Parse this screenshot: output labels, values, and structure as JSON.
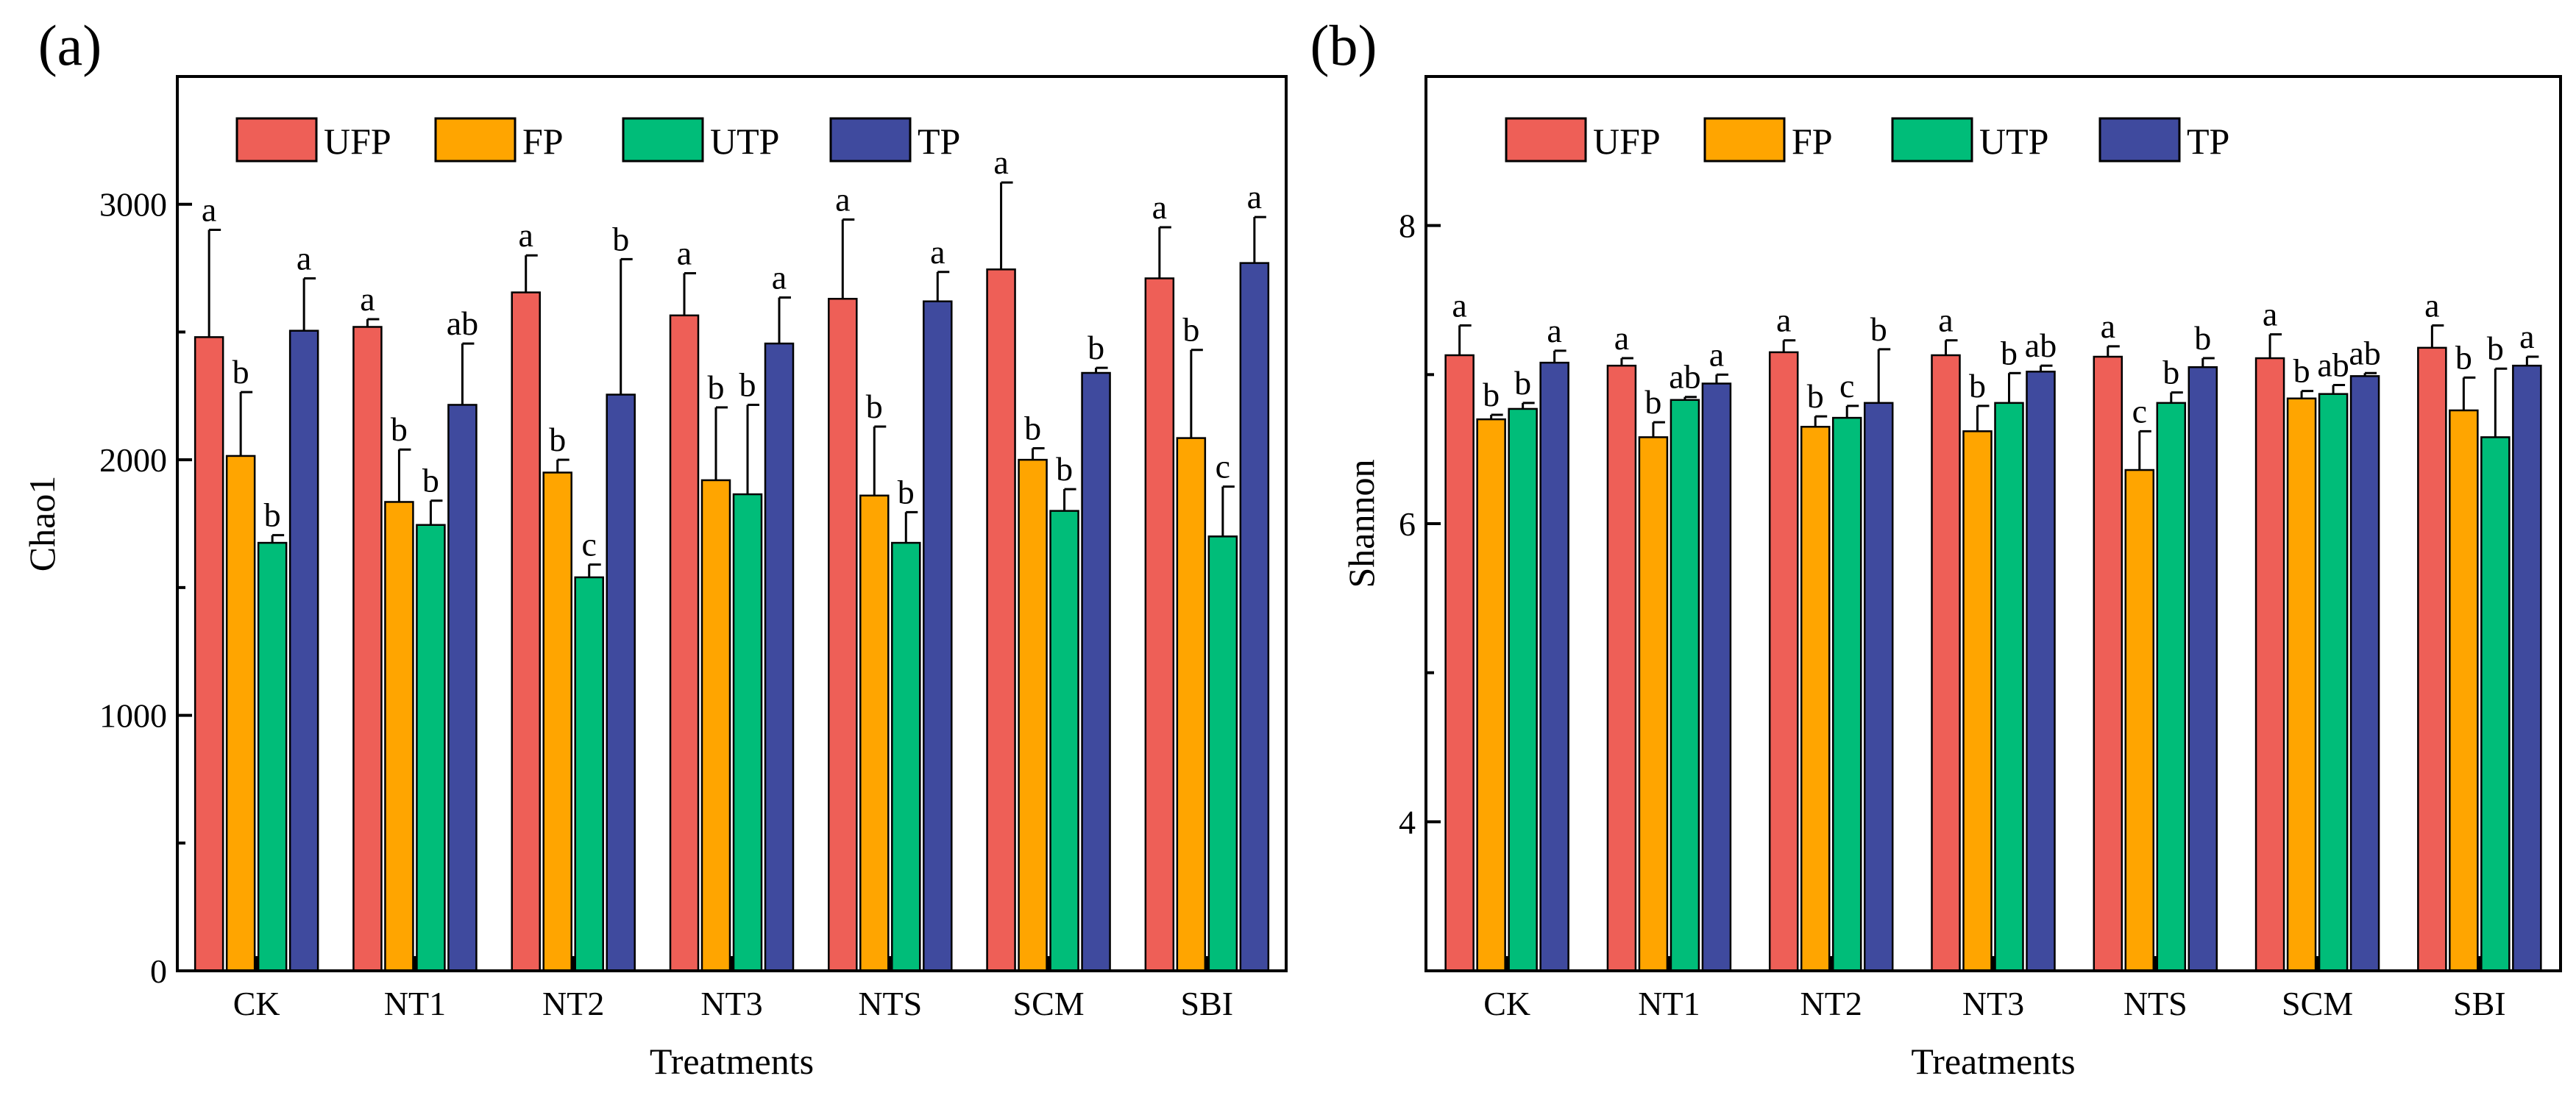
{
  "chart_data": [
    {
      "type": "bar",
      "panel_label": "(a)",
      "title": "",
      "xlabel": "Treatments",
      "ylabel": "Chao1",
      "ylim": [
        0,
        3500
      ],
      "yticks": [
        0,
        1000,
        2000,
        3000
      ],
      "ytick_labels": [
        "0",
        "1000",
        "2000",
        "3000"
      ],
      "grid": false,
      "legend_position": "top-left",
      "categories": [
        "CK",
        "NT1",
        "NT2",
        "NT3",
        "NTS",
        "SCM",
        "SBI"
      ],
      "series": [
        {
          "name": "UFP",
          "color": "#EE5F57",
          "values": [
            2480,
            2520,
            2655,
            2565,
            2630,
            2745,
            2710
          ],
          "errors": [
            420,
            30,
            145,
            165,
            310,
            340,
            200
          ],
          "letters": [
            "a",
            "a",
            "a",
            "a",
            "a",
            "a",
            "a"
          ]
        },
        {
          "name": "FP",
          "color": "#FFA500",
          "values": [
            2015,
            1835,
            1950,
            1920,
            1860,
            2000,
            2085
          ],
          "errors": [
            250,
            205,
            50,
            285,
            270,
            45,
            345
          ],
          "letters": [
            "b",
            "b",
            "b",
            "b",
            "b",
            "b",
            "b"
          ]
        },
        {
          "name": "UTP",
          "color": "#00BD79",
          "values": [
            1675,
            1745,
            1540,
            1865,
            1675,
            1800,
            1700
          ],
          "errors": [
            30,
            95,
            50,
            350,
            120,
            85,
            195
          ],
          "letters": [
            "b",
            "b",
            "c",
            "b",
            "b",
            "b",
            "c"
          ]
        },
        {
          "name": "TP",
          "color": "#3F4A9E",
          "values": [
            2505,
            2215,
            2255,
            2455,
            2620,
            2340,
            2770
          ],
          "errors": [
            205,
            240,
            530,
            180,
            115,
            20,
            180
          ],
          "letters": [
            "a",
            "ab",
            "b",
            "a",
            "a",
            "b",
            "a"
          ]
        }
      ]
    },
    {
      "type": "bar",
      "panel_label": "(b)",
      "title": "",
      "xlabel": "Treatments",
      "ylabel": "Shannon",
      "ylim": [
        3,
        9
      ],
      "yticks": [
        4,
        6,
        8
      ],
      "ytick_labels": [
        "4",
        "6",
        "8"
      ],
      "grid": false,
      "legend_position": "top-left",
      "categories": [
        "CK",
        "NT1",
        "NT2",
        "NT3",
        "NTS",
        "SCM",
        "SBI"
      ],
      "series": [
        {
          "name": "UFP",
          "color": "#EE5F57",
          "values": [
            7.13,
            7.06,
            7.15,
            7.13,
            7.12,
            7.11,
            7.18
          ],
          "errors": [
            0.2,
            0.05,
            0.08,
            0.1,
            0.07,
            0.16,
            0.15
          ],
          "letters": [
            "a",
            "a",
            "a",
            "a",
            "a",
            "a",
            "a"
          ]
        },
        {
          "name": "FP",
          "color": "#FFA500",
          "values": [
            6.7,
            6.58,
            6.65,
            6.62,
            6.36,
            6.84,
            6.76
          ],
          "errors": [
            0.03,
            0.1,
            0.07,
            0.17,
            0.26,
            0.05,
            0.22
          ],
          "letters": [
            "b",
            "b",
            "b",
            "b",
            "c",
            "b",
            "b"
          ]
        },
        {
          "name": "UTP",
          "color": "#00BD79",
          "values": [
            6.77,
            6.83,
            6.71,
            6.81,
            6.81,
            6.87,
            6.58
          ],
          "errors": [
            0.04,
            0.02,
            0.08,
            0.2,
            0.07,
            0.06,
            0.46
          ],
          "letters": [
            "b",
            "ab",
            "c",
            "b",
            "b",
            "ab",
            "b"
          ]
        },
        {
          "name": "TP",
          "color": "#3F4A9E",
          "values": [
            7.08,
            6.94,
            6.81,
            7.02,
            7.05,
            6.99,
            7.06
          ],
          "errors": [
            0.08,
            0.06,
            0.36,
            0.04,
            0.06,
            0.02,
            0.06
          ],
          "letters": [
            "a",
            "a",
            "b",
            "ab",
            "b",
            "ab",
            "a"
          ]
        }
      ]
    }
  ]
}
